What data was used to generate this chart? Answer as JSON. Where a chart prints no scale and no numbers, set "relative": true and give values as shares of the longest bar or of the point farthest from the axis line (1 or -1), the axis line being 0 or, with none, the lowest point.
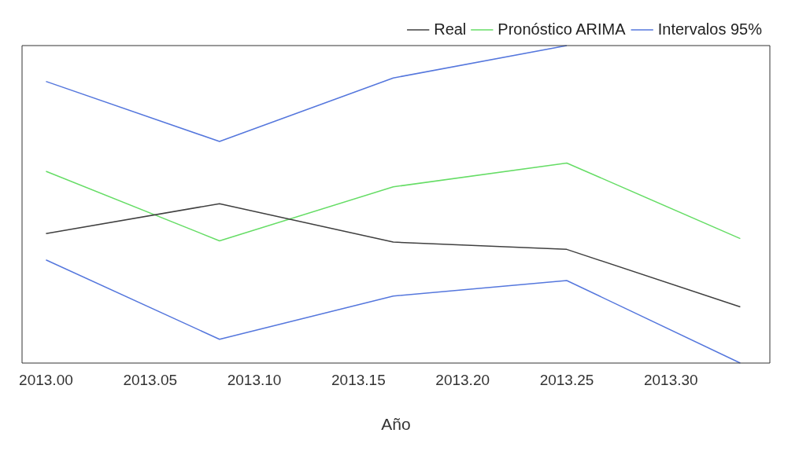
{
  "chart_data": {
    "type": "line",
    "relative": true,
    "xlabel": "Año",
    "x": [
      2013.0,
      2013.0833,
      2013.1667,
      2013.25,
      2013.3333
    ],
    "xlim": [
      2012.9885,
      2013.3475
    ],
    "xticks": [
      {
        "value": 2013.0,
        "label": "2013.00"
      },
      {
        "value": 2013.05,
        "label": "2013.05"
      },
      {
        "value": 2013.1,
        "label": "2013.10"
      },
      {
        "value": 2013.15,
        "label": "2013.15"
      },
      {
        "value": 2013.2,
        "label": "2013.20"
      },
      {
        "value": 2013.25,
        "label": "2013.25"
      },
      {
        "value": 2013.3,
        "label": "2013.30"
      }
    ],
    "series": [
      {
        "name": "Real",
        "color": "#404040",
        "values": [
          0.408,
          0.502,
          0.381,
          0.358,
          0.177
        ]
      },
      {
        "name": "Pronóstico ARIMA",
        "color": "#66dd66",
        "values": [
          0.604,
          0.385,
          0.555,
          0.63,
          0.392
        ]
      },
      {
        "name": "Intervalos 95%",
        "color": "#5577dd",
        "values": [
          0.887,
          0.698,
          0.898,
          1,
          null
        ]
      },
      {
        "color": "#5577dd",
        "values": [
          0.325,
          0.075,
          0.211,
          0.26,
          0
        ]
      }
    ],
    "grid": false,
    "legend": "top right",
    "tick_labels": "x",
    "marker": "none",
    "line_style": "solid"
  }
}
